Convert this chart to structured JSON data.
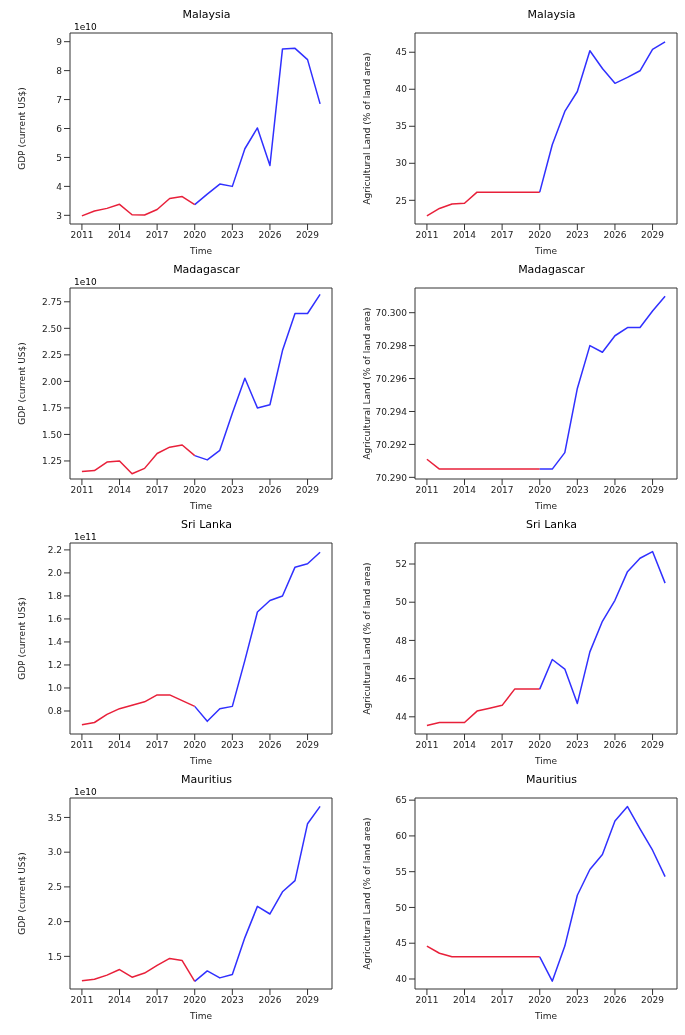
{
  "chart_data": [
    {
      "type": "line",
      "title": "Malaysia",
      "xlabel": "Time",
      "ylabel": "GDP (current US$)",
      "annotations": [
        "1e10"
      ],
      "xlim": [
        2010.05,
        2030.95
      ],
      "xticks": [
        2011,
        2014,
        2017,
        2020,
        2023,
        2026,
        2029
      ],
      "ylim": [
        2.7,
        9.3
      ],
      "yticks": [
        3,
        4,
        5,
        6,
        7,
        8,
        9
      ],
      "series": [
        {
          "color": "#e8203a",
          "x": [
            2011,
            2012,
            2013,
            2014,
            2015,
            2016,
            2017,
            2018,
            2019,
            2020
          ],
          "values": [
            2.98,
            3.15,
            3.24,
            3.38,
            3.02,
            3.01,
            3.2,
            3.58,
            3.65,
            3.37
          ]
        },
        {
          "color": "#3030ff",
          "x": [
            2020,
            2021,
            2022,
            2023,
            2024,
            2025,
            2026,
            2027,
            2028,
            2029,
            2030
          ],
          "values": [
            3.37,
            3.73,
            4.08,
            4.0,
            5.3,
            6.02,
            4.72,
            8.75,
            8.77,
            8.38,
            6.85
          ]
        }
      ]
    },
    {
      "type": "line",
      "title": "Malaysia",
      "xlabel": "Time",
      "ylabel": "Agricultural Land (% of land area)",
      "xlim": [
        2010.05,
        2030.95
      ],
      "xticks": [
        2011,
        2014,
        2017,
        2020,
        2023,
        2026,
        2029
      ],
      "ylim": [
        21.8,
        47.6
      ],
      "yticks": [
        25,
        30,
        35,
        40,
        45
      ],
      "series": [
        {
          "color": "#e8203a",
          "x": [
            2011,
            2012,
            2013,
            2014,
            2015,
            2016,
            2017,
            2018,
            2019,
            2020
          ],
          "values": [
            22.9,
            23.9,
            24.5,
            24.6,
            26.1,
            26.1,
            26.1,
            26.1,
            26.1,
            26.1
          ]
        },
        {
          "color": "#3030ff",
          "x": [
            2020,
            2021,
            2022,
            2023,
            2024,
            2025,
            2026,
            2027,
            2028,
            2029,
            2030
          ],
          "values": [
            26.1,
            32.5,
            37.0,
            39.7,
            45.2,
            42.8,
            40.8,
            41.6,
            42.5,
            45.4,
            46.4
          ]
        }
      ]
    },
    {
      "type": "line",
      "title": "Madagascar",
      "xlabel": "Time",
      "ylabel": "GDP (current US$)",
      "annotations": [
        "1e10"
      ],
      "xlim": [
        2010.05,
        2030.95
      ],
      "xticks": [
        2011,
        2014,
        2017,
        2020,
        2023,
        2026,
        2029
      ],
      "ylim": [
        1.08,
        2.88
      ],
      "yticks": [
        {
          "value": 1.25,
          "label": "1.25"
        },
        {
          "value": 1.5,
          "label": "1.50"
        },
        {
          "value": 1.75,
          "label": "1.75"
        },
        {
          "value": 2,
          "label": "2.00"
        },
        {
          "value": 2.25,
          "label": "2.25"
        },
        {
          "value": 2.5,
          "label": "2.50"
        },
        {
          "value": 2.75,
          "label": "2.75"
        }
      ],
      "series": [
        {
          "color": "#e8203a",
          "x": [
            2011,
            2012,
            2013,
            2014,
            2015,
            2016,
            2017,
            2018,
            2019,
            2020
          ],
          "values": [
            1.15,
            1.16,
            1.24,
            1.25,
            1.13,
            1.18,
            1.32,
            1.38,
            1.4,
            1.3
          ]
        },
        {
          "color": "#3030ff",
          "x": [
            2020,
            2021,
            2022,
            2023,
            2024,
            2025,
            2026,
            2027,
            2028,
            2029,
            2030
          ],
          "values": [
            1.3,
            1.26,
            1.35,
            1.7,
            2.03,
            1.75,
            1.78,
            2.29,
            2.64,
            2.64,
            2.82
          ]
        }
      ]
    },
    {
      "type": "line",
      "title": "Madagascar",
      "xlabel": "Time",
      "ylabel": "Agricultural Land (% of land area)",
      "xlim": [
        2010.05,
        2030.95
      ],
      "xticks": [
        2011,
        2014,
        2017,
        2020,
        2023,
        2026,
        2029
      ],
      "ylim": [
        70.2899,
        70.3015
      ],
      "yticks": [
        {
          "value": 70.29,
          "label": "70.290"
        },
        {
          "value": 70.292,
          "label": "70.292"
        },
        {
          "value": 70.294,
          "label": "70.294"
        },
        {
          "value": 70.296,
          "label": "70.296"
        },
        {
          "value": 70.298,
          "label": "70.298"
        },
        {
          "value": 70.3,
          "label": "70.300"
        }
      ],
      "series": [
        {
          "color": "#e8203a",
          "x": [
            2011,
            2012,
            2013,
            2014,
            2015,
            2016,
            2017,
            2018,
            2019,
            2020
          ],
          "values": [
            70.2911,
            70.2905,
            70.2905,
            70.2905,
            70.2905,
            70.2905,
            70.2905,
            70.2905,
            70.2905,
            70.2905
          ]
        },
        {
          "color": "#3030ff",
          "x": [
            2020,
            2021,
            2022,
            2023,
            2024,
            2025,
            2026,
            2027,
            2028,
            2029,
            2030
          ],
          "values": [
            70.2905,
            70.2905,
            70.2915,
            70.2954,
            70.298,
            70.2976,
            70.2986,
            70.2991,
            70.2991,
            70.3001,
            70.301
          ]
        }
      ]
    },
    {
      "type": "line",
      "title": "Sri Lanka",
      "xlabel": "Time",
      "ylabel": "GDP (current US$)",
      "annotations": [
        "1e11"
      ],
      "xlim": [
        2010.05,
        2030.95
      ],
      "xticks": [
        2011,
        2014,
        2017,
        2020,
        2023,
        2026,
        2029
      ],
      "ylim": [
        0.6,
        2.26
      ],
      "yticks": [
        {
          "value": 0.8,
          "label": "0.8"
        },
        {
          "value": 1,
          "label": "1.0"
        },
        {
          "value": 1.2,
          "label": "1.2"
        },
        {
          "value": 1.4,
          "label": "1.4"
        },
        {
          "value": 1.6,
          "label": "1.6"
        },
        {
          "value": 1.8,
          "label": "1.8"
        },
        {
          "value": 2,
          "label": "2.0"
        },
        {
          "value": 2.2,
          "label": "2.2"
        }
      ],
      "series": [
        {
          "color": "#e8203a",
          "x": [
            2011,
            2012,
            2013,
            2014,
            2015,
            2016,
            2017,
            2018,
            2019,
            2020
          ],
          "values": [
            0.68,
            0.7,
            0.77,
            0.82,
            0.85,
            0.88,
            0.94,
            0.94,
            0.89,
            0.84
          ]
        },
        {
          "color": "#3030ff",
          "x": [
            2020,
            2021,
            2022,
            2023,
            2024,
            2025,
            2026,
            2027,
            2028,
            2029,
            2030
          ],
          "values": [
            0.84,
            0.71,
            0.82,
            0.84,
            1.24,
            1.66,
            1.76,
            1.8,
            2.05,
            2.08,
            2.18
          ]
        }
      ]
    },
    {
      "type": "line",
      "title": "Sri Lanka",
      "xlabel": "Time",
      "ylabel": "Agricultural Land (% of land area)",
      "xlim": [
        2010.05,
        2030.95
      ],
      "xticks": [
        2011,
        2014,
        2017,
        2020,
        2023,
        2026,
        2029
      ],
      "ylim": [
        43.1,
        53.1
      ],
      "yticks": [
        44,
        46,
        48,
        50,
        52
      ],
      "series": [
        {
          "color": "#e8203a",
          "x": [
            2011,
            2012,
            2013,
            2014,
            2015,
            2016,
            2017,
            2018,
            2019,
            2020
          ],
          "values": [
            43.55,
            43.7,
            43.7,
            43.7,
            44.3,
            44.45,
            44.6,
            45.45,
            45.45,
            45.45
          ]
        },
        {
          "color": "#3030ff",
          "x": [
            2020,
            2021,
            2022,
            2023,
            2024,
            2025,
            2026,
            2027,
            2028,
            2029,
            2030
          ],
          "values": [
            45.45,
            47.0,
            46.5,
            44.7,
            47.4,
            49.0,
            50.1,
            51.6,
            52.3,
            52.65,
            51.0
          ]
        }
      ]
    },
    {
      "type": "line",
      "title": "Mauritius",
      "xlabel": "Time",
      "ylabel": "GDP (current US$)",
      "annotations": [
        "1e10"
      ],
      "xlim": [
        2010.05,
        2030.95
      ],
      "xticks": [
        2011,
        2014,
        2017,
        2020,
        2023,
        2026,
        2029
      ],
      "ylim": [
        1.03,
        3.78
      ],
      "yticks": [
        {
          "value": 1.5,
          "label": "1.5"
        },
        {
          "value": 2,
          "label": "2.0"
        },
        {
          "value": 2.5,
          "label": "2.5"
        },
        {
          "value": 3,
          "label": "3.0"
        },
        {
          "value": 3.5,
          "label": "3.5"
        }
      ],
      "series": [
        {
          "color": "#e8203a",
          "x": [
            2011,
            2012,
            2013,
            2014,
            2015,
            2016,
            2017,
            2018,
            2019,
            2020
          ],
          "values": [
            1.15,
            1.17,
            1.23,
            1.31,
            1.2,
            1.26,
            1.37,
            1.47,
            1.44,
            1.14
          ]
        },
        {
          "color": "#3030ff",
          "x": [
            2020,
            2021,
            2022,
            2023,
            2024,
            2025,
            2026,
            2027,
            2028,
            2029,
            2030
          ],
          "values": [
            1.14,
            1.29,
            1.19,
            1.24,
            1.77,
            2.22,
            2.11,
            2.43,
            2.59,
            3.41,
            3.66
          ]
        }
      ]
    },
    {
      "type": "line",
      "title": "Mauritius",
      "xlabel": "Time",
      "ylabel": "Agricultural Land (% of land area)",
      "xlim": [
        2010.05,
        2030.95
      ],
      "xticks": [
        2011,
        2014,
        2017,
        2020,
        2023,
        2026,
        2029
      ],
      "ylim": [
        38.6,
        65.3
      ],
      "yticks": [
        40,
        45,
        50,
        55,
        60,
        65
      ],
      "series": [
        {
          "color": "#e8203a",
          "x": [
            2011,
            2012,
            2013,
            2014,
            2015,
            2016,
            2017,
            2018,
            2019,
            2020
          ],
          "values": [
            44.6,
            43.6,
            43.1,
            43.1,
            43.1,
            43.1,
            43.1,
            43.1,
            43.1,
            43.1
          ]
        },
        {
          "color": "#3030ff",
          "x": [
            2020,
            2021,
            2022,
            2023,
            2024,
            2025,
            2026,
            2027,
            2028,
            2029,
            2030
          ],
          "values": [
            43.1,
            39.7,
            44.6,
            51.7,
            55.3,
            57.4,
            62.1,
            64.1,
            61.0,
            58.0,
            54.3
          ]
        }
      ]
    }
  ]
}
